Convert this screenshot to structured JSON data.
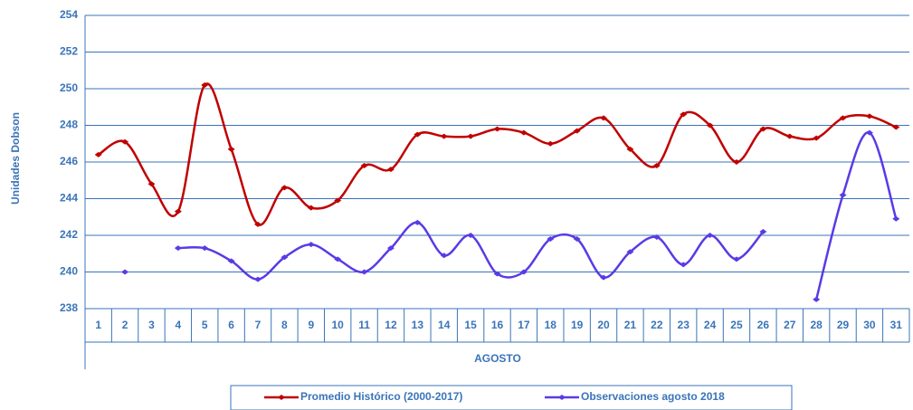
{
  "chart_data": {
    "type": "line",
    "categories": [
      "1",
      "2",
      "3",
      "4",
      "5",
      "6",
      "7",
      "8",
      "9",
      "10",
      "11",
      "12",
      "13",
      "14",
      "15",
      "16",
      "17",
      "18",
      "19",
      "20",
      "21",
      "22",
      "23",
      "24",
      "25",
      "26",
      "27",
      "28",
      "29",
      "30",
      "31"
    ],
    "x_label": "AGOSTO",
    "y_label": "Unidades Dobson",
    "series": [
      {
        "name": "Promedio Histórico (2000-2017)",
        "color": "#c00000",
        "values": [
          246.4,
          247.1,
          244.8,
          243.3,
          250.2,
          246.7,
          242.6,
          244.6,
          243.5,
          243.9,
          245.8,
          245.6,
          247.5,
          247.4,
          247.4,
          247.8,
          247.6,
          247.0,
          247.7,
          248.4,
          246.7,
          245.8,
          248.6,
          248.0,
          246.0,
          247.8,
          247.4,
          247.3,
          248.4,
          248.5,
          247.9
        ]
      },
      {
        "name": "Observaciones agosto 2018",
        "color": "#5a3ae6",
        "values": [
          null,
          240.0,
          null,
          241.3,
          241.3,
          240.6,
          239.6,
          240.8,
          241.5,
          240.7,
          240.0,
          241.3,
          242.7,
          240.9,
          242.0,
          239.9,
          240.0,
          241.8,
          241.8,
          239.7,
          241.1,
          241.9,
          240.4,
          242.0,
          240.7,
          242.2,
          null,
          238.5,
          244.2,
          247.6,
          242.9
        ]
      }
    ],
    "ylim": [
      238,
      254
    ],
    "yticks": [
      238,
      240,
      242,
      244,
      246,
      248,
      250,
      252,
      254
    ],
    "grid": true
  }
}
